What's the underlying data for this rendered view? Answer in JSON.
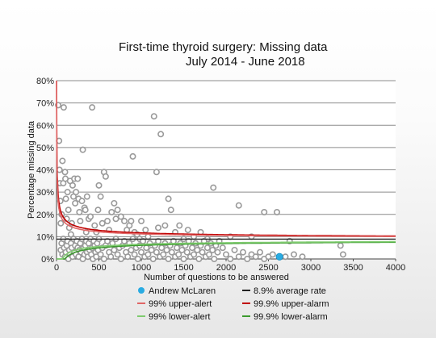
{
  "chart_data": {
    "type": "scatter",
    "title": "First-time thyroid surgery: Missing data",
    "subtitle": "July 2014 - June 2018",
    "xlabel": "Number of questions to be answered",
    "ylabel": "Percentage missing data",
    "xlim": [
      0,
      4000
    ],
    "ylim": [
      0,
      80
    ],
    "x_ticks": [
      "0",
      "500",
      "1000",
      "1500",
      "2000",
      "2500",
      "3000",
      "3500",
      "4000"
    ],
    "y_ticks": [
      "0%",
      "10%",
      "20%",
      "30%",
      "40%",
      "50%",
      "60%",
      "70%",
      "80%"
    ],
    "grid": "horizontal",
    "average_rate": 8.9,
    "highlight_point": {
      "name": "Andrew McLaren",
      "x": 2630,
      "y": 1.0
    },
    "points": [
      [
        20,
        69
      ],
      [
        30,
        53
      ],
      [
        35,
        40
      ],
      [
        40,
        34
      ],
      [
        45,
        26
      ],
      [
        50,
        16
      ],
      [
        60,
        20
      ],
      [
        70,
        44
      ],
      [
        80,
        34
      ],
      [
        85,
        68
      ],
      [
        100,
        39
      ],
      [
        105,
        36
      ],
      [
        110,
        27
      ],
      [
        120,
        18
      ],
      [
        130,
        30
      ],
      [
        140,
        22
      ],
      [
        150,
        14
      ],
      [
        160,
        35
      ],
      [
        170,
        11
      ],
      [
        180,
        16
      ],
      [
        190,
        33
      ],
      [
        200,
        28
      ],
      [
        210,
        36
      ],
      [
        220,
        25
      ],
      [
        230,
        30
      ],
      [
        250,
        36
      ],
      [
        260,
        27
      ],
      [
        270,
        21
      ],
      [
        280,
        17
      ],
      [
        300,
        26
      ],
      [
        310,
        49
      ],
      [
        330,
        23
      ],
      [
        340,
        22
      ],
      [
        350,
        12
      ],
      [
        360,
        28
      ],
      [
        380,
        18
      ],
      [
        400,
        19
      ],
      [
        420,
        68
      ],
      [
        450,
        15
      ],
      [
        470,
        12
      ],
      [
        490,
        22
      ],
      [
        500,
        33
      ],
      [
        520,
        28
      ],
      [
        540,
        16
      ],
      [
        560,
        39
      ],
      [
        580,
        37
      ],
      [
        600,
        17
      ],
      [
        620,
        13
      ],
      [
        650,
        21
      ],
      [
        680,
        25
      ],
      [
        700,
        18
      ],
      [
        720,
        22
      ],
      [
        760,
        19
      ],
      [
        800,
        17
      ],
      [
        830,
        13
      ],
      [
        860,
        15
      ],
      [
        880,
        17
      ],
      [
        900,
        46
      ],
      [
        920,
        12
      ],
      [
        950,
        11
      ],
      [
        980,
        9
      ],
      [
        1000,
        17
      ],
      [
        1050,
        13
      ],
      [
        1080,
        10
      ],
      [
        1150,
        64
      ],
      [
        1180,
        39
      ],
      [
        1200,
        14
      ],
      [
        1230,
        56
      ],
      [
        1280,
        15
      ],
      [
        1320,
        27
      ],
      [
        1350,
        22
      ],
      [
        1400,
        12
      ],
      [
        1450,
        15
      ],
      [
        1500,
        9
      ],
      [
        1550,
        13
      ],
      [
        1620,
        10
      ],
      [
        1700,
        12
      ],
      [
        1780,
        9
      ],
      [
        1850,
        32
      ],
      [
        2050,
        10
      ],
      [
        2150,
        24
      ],
      [
        2300,
        10
      ],
      [
        2450,
        21
      ],
      [
        2600,
        21
      ],
      [
        2750,
        8
      ],
      [
        3350,
        6
      ],
      [
        3380,
        2
      ],
      [
        50,
        4
      ],
      [
        60,
        7
      ],
      [
        70,
        2
      ],
      [
        80,
        9
      ],
      [
        90,
        5
      ],
      [
        100,
        1
      ],
      [
        110,
        3
      ],
      [
        120,
        6
      ],
      [
        130,
        8
      ],
      [
        140,
        0
      ],
      [
        150,
        4
      ],
      [
        160,
        2
      ],
      [
        170,
        7
      ],
      [
        180,
        5
      ],
      [
        190,
        1
      ],
      [
        200,
        9
      ],
      [
        210,
        3
      ],
      [
        220,
        6
      ],
      [
        230,
        2
      ],
      [
        240,
        8
      ],
      [
        250,
        5
      ],
      [
        260,
        1
      ],
      [
        270,
        4
      ],
      [
        280,
        7
      ],
      [
        290,
        3
      ],
      [
        300,
        9
      ],
      [
        310,
        0
      ],
      [
        320,
        5
      ],
      [
        330,
        2
      ],
      [
        340,
        6
      ],
      [
        350,
        8
      ],
      [
        360,
        3
      ],
      [
        370,
        1
      ],
      [
        380,
        7
      ],
      [
        390,
        4
      ],
      [
        400,
        9
      ],
      [
        410,
        2
      ],
      [
        420,
        5
      ],
      [
        430,
        0
      ],
      [
        440,
        8
      ],
      [
        450,
        6
      ],
      [
        460,
        3
      ],
      [
        470,
        1
      ],
      [
        480,
        7
      ],
      [
        490,
        4
      ],
      [
        500,
        9
      ],
      [
        520,
        2
      ],
      [
        540,
        5
      ],
      [
        560,
        0
      ],
      [
        580,
        6
      ],
      [
        600,
        8
      ],
      [
        620,
        3
      ],
      [
        640,
        1
      ],
      [
        660,
        7
      ],
      [
        680,
        4
      ],
      [
        700,
        9
      ],
      [
        720,
        2
      ],
      [
        740,
        5
      ],
      [
        760,
        0
      ],
      [
        780,
        6
      ],
      [
        800,
        8
      ],
      [
        820,
        3
      ],
      [
        840,
        1
      ],
      [
        860,
        7
      ],
      [
        880,
        4
      ],
      [
        900,
        9
      ],
      [
        920,
        2
      ],
      [
        940,
        5
      ],
      [
        960,
        0
      ],
      [
        980,
        6
      ],
      [
        1000,
        3
      ],
      [
        1020,
        8
      ],
      [
        1040,
        1
      ],
      [
        1060,
        5
      ],
      [
        1080,
        2
      ],
      [
        1100,
        7
      ],
      [
        1120,
        4
      ],
      [
        1140,
        0
      ],
      [
        1160,
        6
      ],
      [
        1180,
        3
      ],
      [
        1200,
        8
      ],
      [
        1220,
        1
      ],
      [
        1240,
        5
      ],
      [
        1260,
        2
      ],
      [
        1280,
        7
      ],
      [
        1300,
        4
      ],
      [
        1320,
        0
      ],
      [
        1340,
        6
      ],
      [
        1360,
        3
      ],
      [
        1380,
        8
      ],
      [
        1400,
        1
      ],
      [
        1420,
        5
      ],
      [
        1440,
        2
      ],
      [
        1460,
        7
      ],
      [
        1480,
        4
      ],
      [
        1500,
        0
      ],
      [
        1520,
        6
      ],
      [
        1540,
        3
      ],
      [
        1560,
        8
      ],
      [
        1580,
        1
      ],
      [
        1600,
        5
      ],
      [
        1620,
        2
      ],
      [
        1640,
        7
      ],
      [
        1660,
        4
      ],
      [
        1680,
        0
      ],
      [
        1700,
        6
      ],
      [
        1720,
        3
      ],
      [
        1740,
        8
      ],
      [
        1760,
        1
      ],
      [
        1780,
        5
      ],
      [
        1800,
        2
      ],
      [
        1820,
        7
      ],
      [
        1840,
        4
      ],
      [
        1860,
        0
      ],
      [
        1880,
        6
      ],
      [
        1900,
        3
      ],
      [
        1920,
        8
      ],
      [
        1960,
        5
      ],
      [
        2000,
        2
      ],
      [
        2050,
        0
      ],
      [
        2100,
        4
      ],
      [
        2150,
        1
      ],
      [
        2200,
        3
      ],
      [
        2250,
        0
      ],
      [
        2300,
        2
      ],
      [
        2350,
        1
      ],
      [
        2400,
        3
      ],
      [
        2450,
        0
      ],
      [
        2500,
        1
      ],
      [
        2550,
        2
      ],
      [
        2700,
        1
      ],
      [
        2800,
        2
      ],
      [
        2900,
        1
      ]
    ],
    "series": [
      {
        "name": "Andrew McLaren",
        "color": "#29abe2",
        "marker": "dot"
      },
      {
        "name": "8.9% average rate",
        "color": "#222222"
      },
      {
        "name": "99% upper-alert",
        "color": "#e06666"
      },
      {
        "name": "99.9% upper-alarm",
        "color": "#c00000"
      },
      {
        "name": "99% lower-alert",
        "color": "#7ecb6e"
      },
      {
        "name": "99.9% lower-alarm",
        "color": "#3c9a2e"
      }
    ]
  },
  "legend": {
    "items": [
      {
        "label": "Andrew McLaren",
        "color": "#29abe2",
        "marker": "dot"
      },
      {
        "label": "8.9% average rate",
        "color": "#222222",
        "marker": "line"
      },
      {
        "label": "99% upper-alert",
        "color": "#e06666",
        "marker": "line"
      },
      {
        "label": "99.9% upper-alarm",
        "color": "#c00000",
        "marker": "line"
      },
      {
        "label": "99% lower-alert",
        "color": "#7ecb6e",
        "marker": "line"
      },
      {
        "label": "99.9% lower-alarm",
        "color": "#3c9a2e",
        "marker": "line"
      }
    ]
  }
}
